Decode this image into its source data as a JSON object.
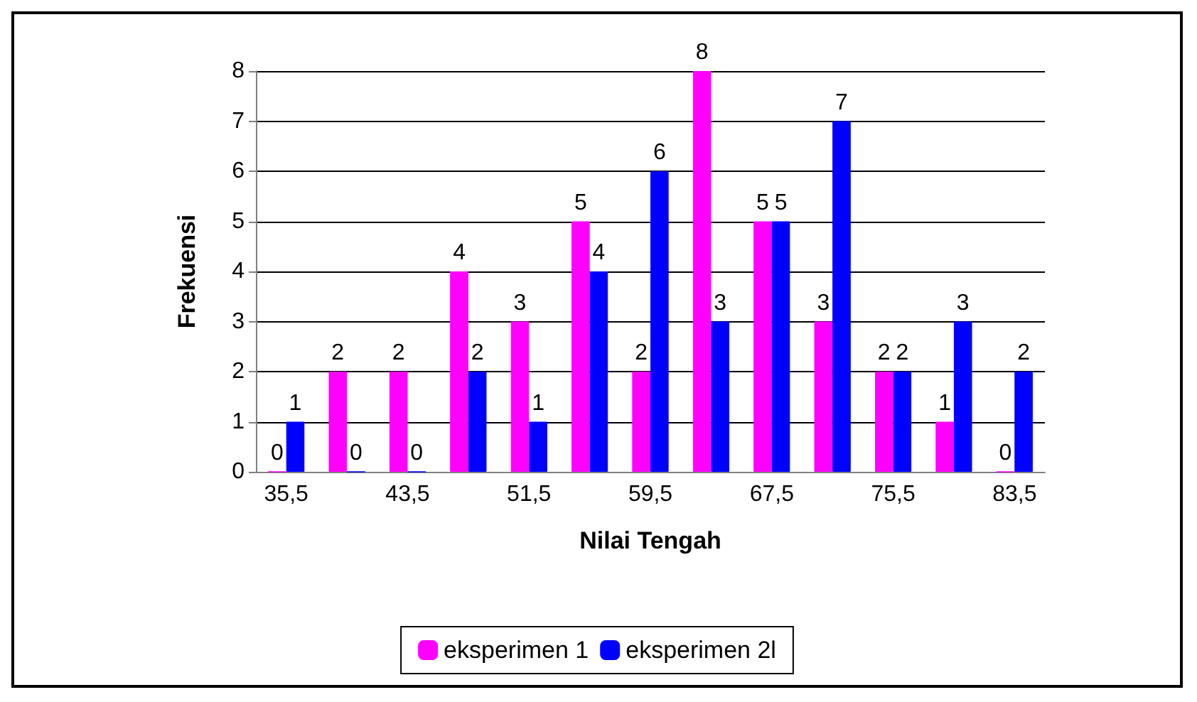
{
  "chart_data": {
    "type": "bar",
    "xlabel": "Nilai Tengah",
    "ylabel": "Frekuensi",
    "categories": [
      "35,5",
      null,
      "43,5",
      null,
      "51,5",
      null,
      "59,5",
      null,
      "67,5",
      null,
      "75,5",
      null,
      "83,5"
    ],
    "series": [
      {
        "name": "eksperimen 1",
        "color": "#ff00ff",
        "values": [
          0,
          2,
          2,
          4,
          3,
          5,
          2,
          8,
          5,
          3,
          2,
          1,
          0
        ]
      },
      {
        "name": "eksperimen 2l",
        "color": "#0000ff",
        "values": [
          1,
          0,
          0,
          2,
          1,
          4,
          6,
          3,
          5,
          7,
          2,
          3,
          2
        ]
      }
    ],
    "ylim": [
      0,
      8
    ],
    "yticks": [
      0,
      1,
      2,
      3,
      4,
      5,
      6,
      7,
      8
    ],
    "grid": "y",
    "legend": "bottom",
    "data_labels": true
  }
}
